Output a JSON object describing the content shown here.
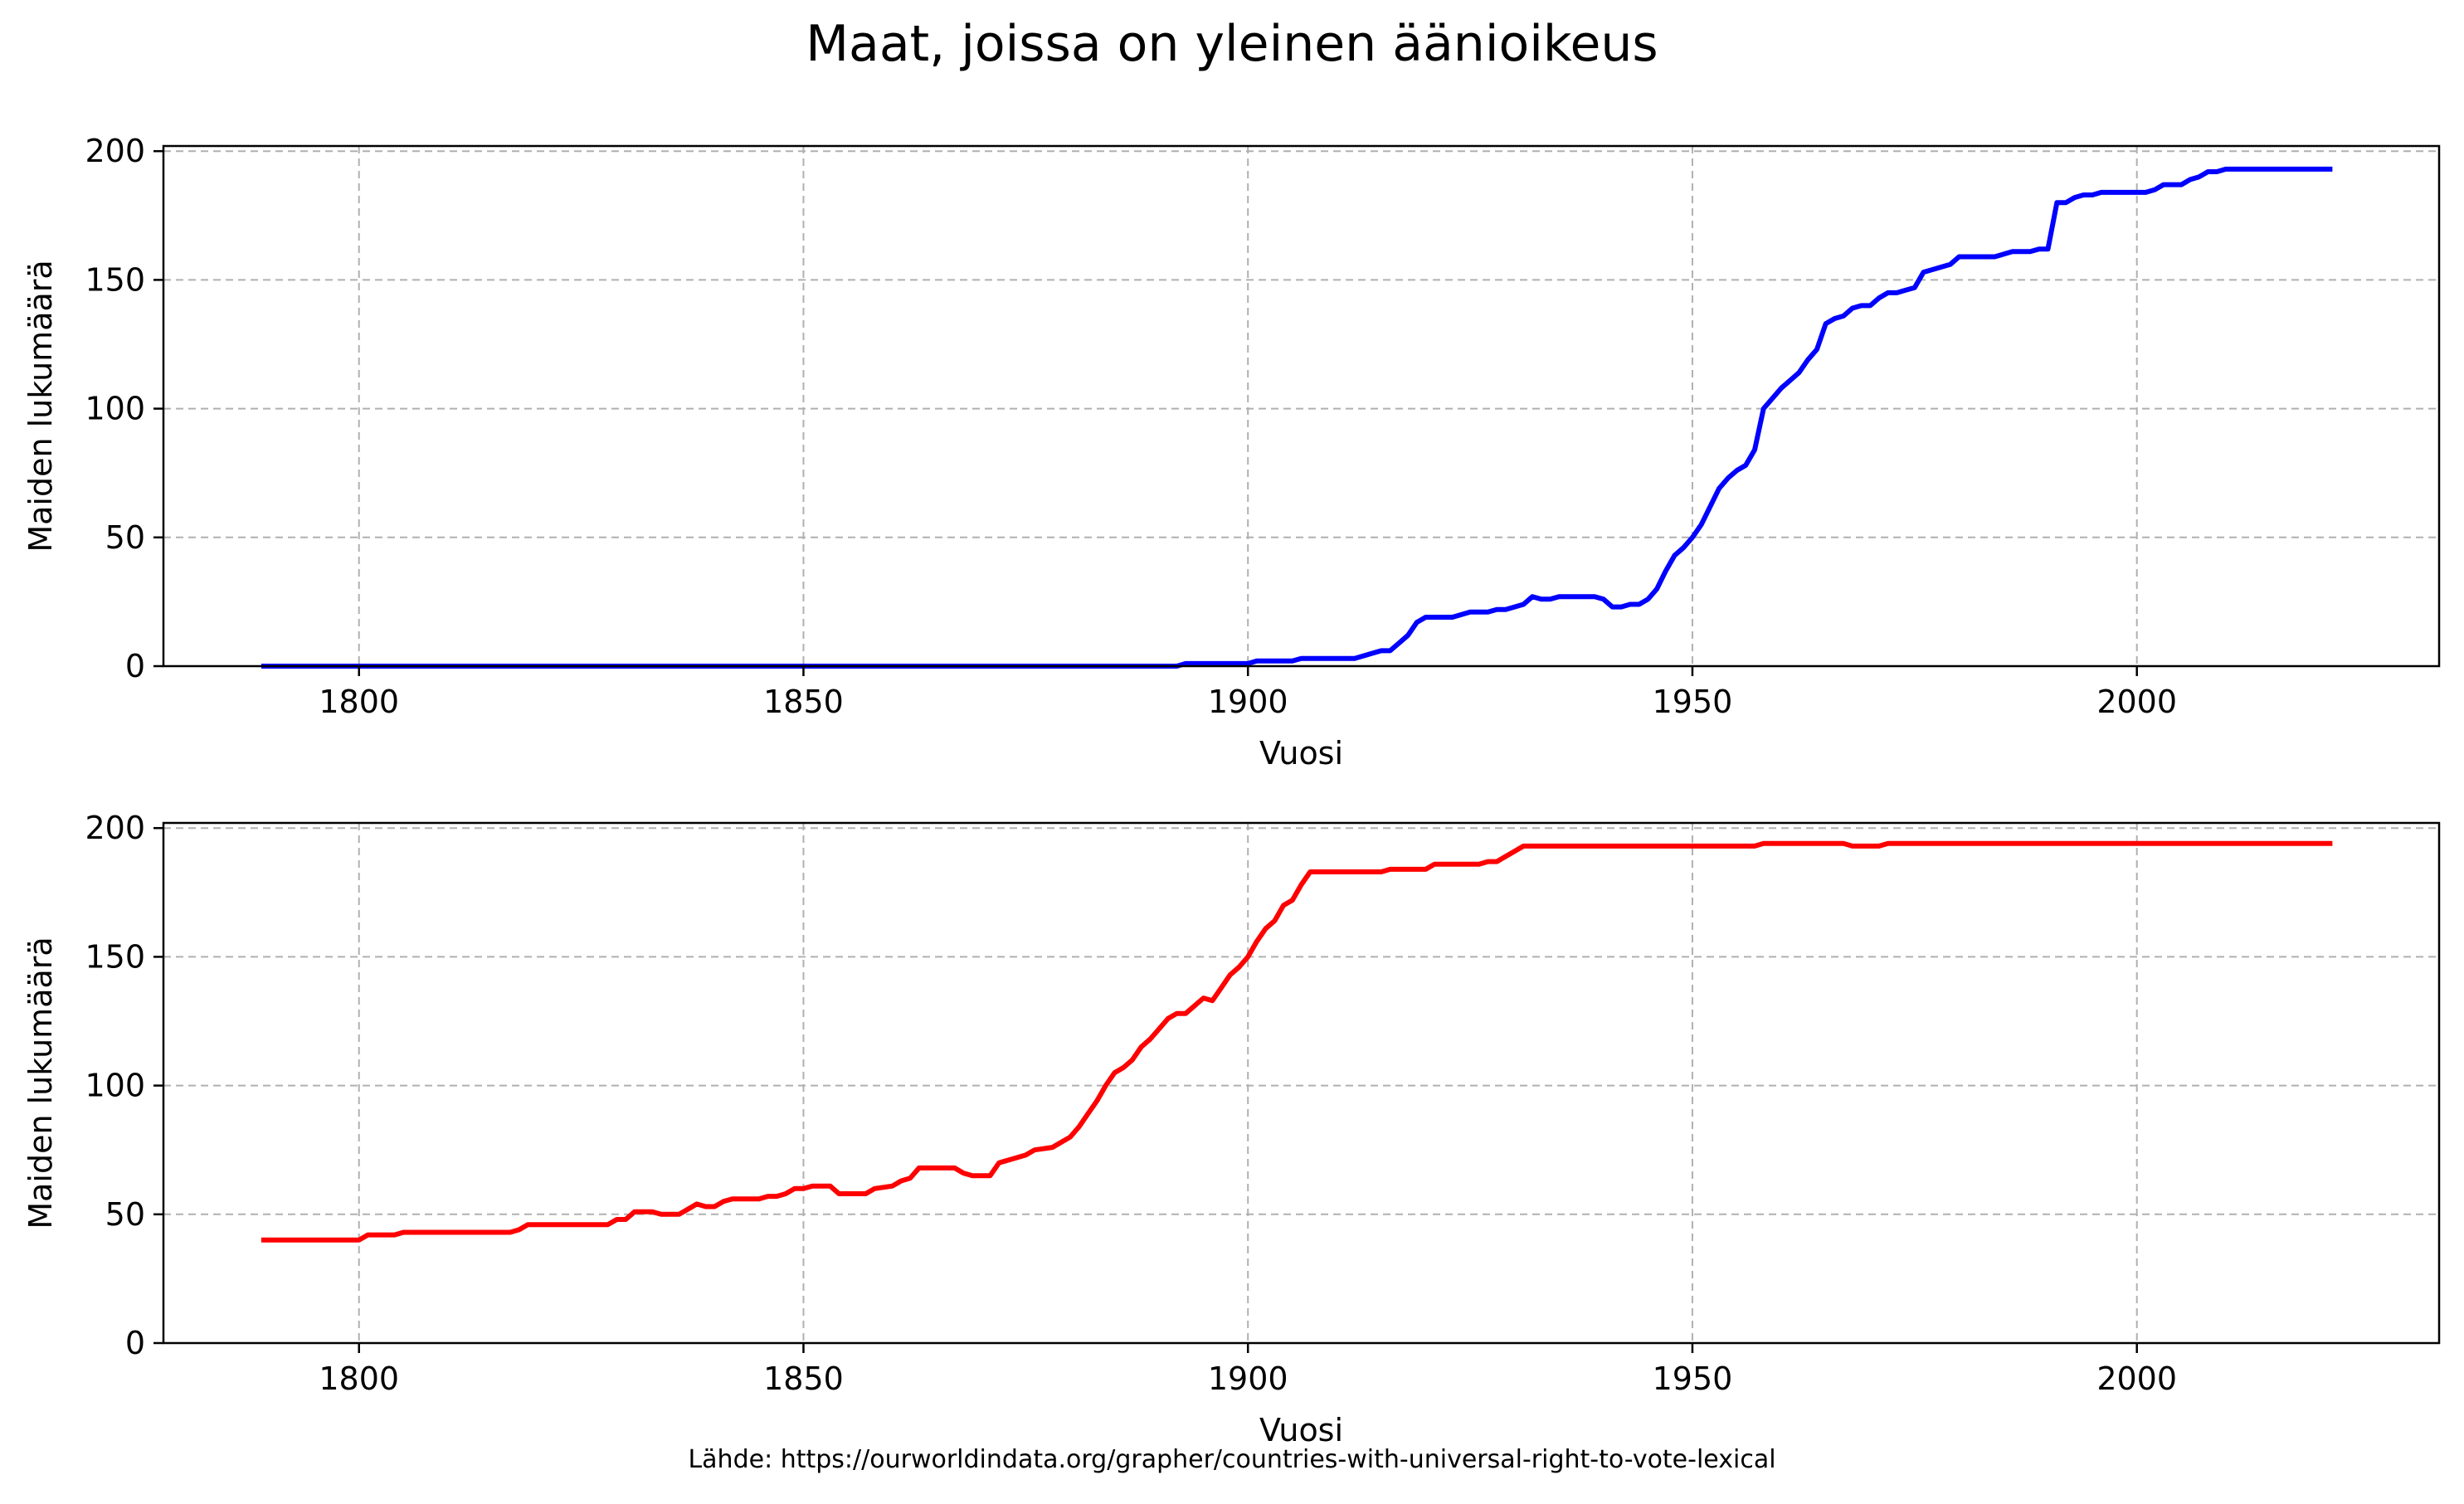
{
  "title": "Maat, joissa on yleinen äänioikeus",
  "source": "Lähde: https://ourworldindata.org/grapher/countries-with-universal-right-to-vote-lexical",
  "chart_data": [
    {
      "type": "line",
      "xlabel": "Vuosi",
      "ylabel": "Maiden lukumäärä",
      "xlim": [
        1778,
        2034
      ],
      "ylim": [
        0,
        202
      ],
      "xticks": [
        1800,
        1850,
        1900,
        1950,
        2000
      ],
      "yticks": [
        0,
        50,
        100,
        150,
        200
      ],
      "grid": true,
      "color": "#0000ff",
      "series": [
        {
          "x": [
            1789,
            1892,
            1893,
            1900,
            1901,
            1905,
            1906,
            1912,
            1913,
            1915,
            1916,
            1917,
            1918,
            1919,
            1920,
            1921,
            1922,
            1923,
            1924,
            1925,
            1926,
            1927,
            1928,
            1929,
            1930,
            1931,
            1932,
            1933,
            1934,
            1935,
            1936,
            1937,
            1938,
            1939,
            1940,
            1941,
            1942,
            1943,
            1944,
            1945,
            1946,
            1947,
            1948,
            1949,
            1950,
            1951,
            1952,
            1953,
            1954,
            1955,
            1956,
            1957,
            1958,
            1959,
            1960,
            1961,
            1962,
            1963,
            1964,
            1965,
            1966,
            1967,
            1968,
            1969,
            1970,
            1971,
            1972,
            1973,
            1974,
            1975,
            1976,
            1977,
            1978,
            1979,
            1980,
            1981,
            1982,
            1983,
            1984,
            1985,
            1986,
            1987,
            1988,
            1989,
            1990,
            1991,
            1992,
            1993,
            1994,
            1995,
            1996,
            1997,
            1998,
            1999,
            2000,
            2001,
            2002,
            2003,
            2004,
            2005,
            2006,
            2007,
            2008,
            2009,
            2010,
            2011,
            2015,
            2022
          ],
          "y": [
            0,
            0,
            1,
            1,
            2,
            2,
            3,
            3,
            4,
            6,
            6,
            9,
            12,
            17,
            19,
            19,
            19,
            19,
            20,
            21,
            21,
            21,
            22,
            22,
            23,
            24,
            27,
            26,
            26,
            27,
            27,
            27,
            27,
            27,
            26,
            23,
            23,
            24,
            24,
            26,
            30,
            37,
            43,
            46,
            50,
            55,
            62,
            69,
            73,
            76,
            78,
            84,
            100,
            104,
            108,
            111,
            114,
            119,
            123,
            133,
            135,
            136,
            139,
            140,
            140,
            143,
            145,
            145,
            146,
            147,
            153,
            154,
            155,
            156,
            159,
            159,
            159,
            159,
            159,
            160,
            161,
            161,
            161,
            162,
            162,
            180,
            180,
            182,
            183,
            183,
            184,
            184,
            184,
            184,
            184,
            184,
            185,
            187,
            187,
            187,
            189,
            190,
            192,
            192,
            193,
            193,
            193,
            193
          ]
        }
      ]
    },
    {
      "type": "line",
      "xlabel": "Vuosi",
      "ylabel": "Maiden lukumäärä",
      "xlim": [
        1778,
        2034
      ],
      "ylim": [
        0,
        202
      ],
      "xticks": [
        1800,
        1850,
        1900,
        1950,
        2000
      ],
      "yticks": [
        0,
        50,
        100,
        150,
        200
      ],
      "grid": true,
      "color": "#ff0000",
      "series": [
        {
          "x": [
            1789,
            1800,
            1801,
            1804,
            1805,
            1816,
            1817,
            1818,
            1819,
            1828,
            1829,
            1830,
            1831,
            1833,
            1834,
            1836,
            1837,
            1838,
            1839,
            1840,
            1841,
            1842,
            1845,
            1846,
            1847,
            1848,
            1849,
            1850,
            1851,
            1853,
            1854,
            1857,
            1858,
            1860,
            1861,
            1862,
            1863,
            1864,
            1867,
            1868,
            1869,
            1871,
            1872,
            1874,
            1875,
            1876,
            1878,
            1879,
            1880,
            1881,
            1882,
            1883,
            1884,
            1885,
            1886,
            1887,
            1888,
            1889,
            1890,
            1891,
            1892,
            1893,
            1894,
            1895,
            1896,
            1897,
            1898,
            1899,
            1900,
            1901,
            1902,
            1903,
            1904,
            1905,
            1906,
            1907,
            1915,
            1916,
            1920,
            1921,
            1926,
            1927,
            1928,
            1929,
            1930,
            1931,
            1957,
            1958,
            1967,
            1968,
            1971,
            1972,
            2022
          ],
          "y": [
            40,
            40,
            42,
            42,
            43,
            43,
            43,
            44,
            46,
            46,
            48,
            48,
            51,
            51,
            50,
            50,
            52,
            54,
            53,
            53,
            55,
            56,
            56,
            57,
            57,
            58,
            60,
            60,
            61,
            61,
            58,
            58,
            60,
            61,
            63,
            64,
            68,
            68,
            68,
            66,
            65,
            65,
            70,
            72,
            73,
            75,
            76,
            78,
            80,
            84,
            89,
            94,
            100,
            105,
            107,
            110,
            115,
            118,
            122,
            126,
            128,
            128,
            131,
            134,
            133,
            138,
            143,
            146,
            150,
            156,
            161,
            164,
            170,
            172,
            178,
            183,
            183,
            184,
            184,
            186,
            186,
            187,
            187,
            189,
            191,
            193,
            193,
            194,
            194,
            193,
            193,
            194,
            194
          ]
        }
      ]
    }
  ]
}
